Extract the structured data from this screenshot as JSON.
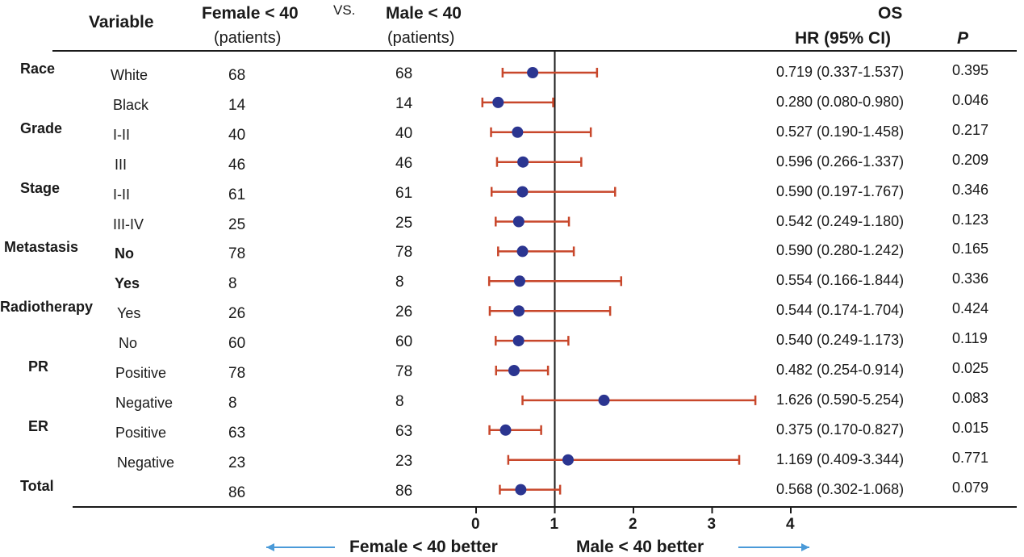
{
  "header": {
    "variable": "Variable",
    "female": "Female < 40",
    "vs": "VS.",
    "male": "Male < 40",
    "patients": "(patients)",
    "os": "OS",
    "hr_ci": "HR (95% CI)",
    "p": "P"
  },
  "groups": [
    {
      "label": "Race",
      "first_row": 0
    },
    {
      "label": "Grade",
      "first_row": 2
    },
    {
      "label": "Stage",
      "first_row": 4
    },
    {
      "label": "Metastasis",
      "first_row": 6
    },
    {
      "label": "Radiotherapy",
      "first_row": 8
    },
    {
      "label": "PR",
      "first_row": 10
    },
    {
      "label": "ER",
      "first_row": 12
    },
    {
      "label": "Total",
      "first_row": 14
    }
  ],
  "rows": [
    {
      "subgroup": "White",
      "female_n": "68",
      "male_n": "68",
      "hr_ci": "0.719 (0.337-1.537)",
      "p": "0.395"
    },
    {
      "subgroup": "Black",
      "female_n": "14",
      "male_n": "14",
      "hr_ci": "0.280 (0.080-0.980)",
      "p": "0.046"
    },
    {
      "subgroup": "I-II",
      "female_n": "40",
      "male_n": "40",
      "hr_ci": "0.527 (0.190-1.458)",
      "p": "0.217"
    },
    {
      "subgroup": "III",
      "female_n": "46",
      "male_n": "46",
      "hr_ci": "0.596 (0.266-1.337)",
      "p": "0.209"
    },
    {
      "subgroup": "I-II",
      "female_n": "61",
      "male_n": "61",
      "hr_ci": "0.590 (0.197-1.767)",
      "p": "0.346"
    },
    {
      "subgroup": "III-IV",
      "female_n": "25",
      "male_n": "25",
      "hr_ci": "0.542 (0.249-1.180)",
      "p": "0.123"
    },
    {
      "subgroup": "No",
      "female_n": "78",
      "male_n": "78",
      "hr_ci": "0.590 (0.280-1.242)",
      "p": "0.165"
    },
    {
      "subgroup": "Yes",
      "female_n": "8",
      "male_n": "8",
      "hr_ci": "0.554 (0.166-1.844)",
      "p": "0.336"
    },
    {
      "subgroup": "Yes",
      "female_n": "26",
      "male_n": "26",
      "hr_ci": "0.544 (0.174-1.704)",
      "p": "0.424"
    },
    {
      "subgroup": "No",
      "female_n": "60",
      "male_n": "60",
      "hr_ci": "0.540 (0.249-1.173)",
      "p": "0.119"
    },
    {
      "subgroup": "Positive",
      "female_n": "78",
      "male_n": "78",
      "hr_ci": "0.482 (0.254-0.914)",
      "p": "0.025"
    },
    {
      "subgroup": "Negative",
      "female_n": "8",
      "male_n": "8",
      "hr_ci": "1.626 (0.590-5.254)",
      "p": "0.083"
    },
    {
      "subgroup": "Positive",
      "female_n": "63",
      "male_n": "63",
      "hr_ci": "0.375 (0.170-0.827)",
      "p": "0.015"
    },
    {
      "subgroup": "Negative",
      "female_n": "23",
      "male_n": "23",
      "hr_ci": "1.169 (0.409-3.344)",
      "p": "0.771"
    },
    {
      "subgroup": "",
      "female_n": "86",
      "male_n": "86",
      "hr_ci": "0.568 (0.302-1.068)",
      "p": "0.079"
    }
  ],
  "footer": {
    "female_better": "Female < 40  better",
    "male_better": "Male < 40 better"
  },
  "colors": {
    "point": "#2b3590",
    "ci_line": "#c8472b",
    "arrow": "#4a9ad8",
    "axis": "#1a1a1a"
  },
  "chart_data": {
    "type": "forest",
    "reference_line": 1,
    "xlim": [
      0,
      4
    ],
    "xticks": [
      "0",
      "1",
      "2",
      "3",
      "4"
    ],
    "series": [
      {
        "values": [
          0.719,
          0.28,
          0.527,
          0.596,
          0.59,
          0.542,
          0.59,
          0.554,
          0.544,
          0.54,
          0.482,
          1.626,
          0.375,
          1.169,
          0.568
        ]
      }
    ],
    "ci_lower": [
      0.337,
      0.08,
      0.19,
      0.266,
      0.197,
      0.249,
      0.28,
      0.166,
      0.174,
      0.249,
      0.254,
      0.59,
      0.17,
      0.409,
      0.302
    ],
    "ci_upper": [
      1.537,
      0.98,
      1.458,
      1.337,
      1.767,
      1.18,
      1.242,
      1.844,
      1.704,
      1.173,
      0.914,
      5.254,
      0.827,
      3.344,
      1.068
    ],
    "axis_display_max": 4,
    "ci_upper_drawn": [
      1.537,
      0.98,
      1.458,
      1.337,
      1.767,
      1.18,
      1.242,
      1.844,
      1.704,
      1.173,
      0.914,
      3.55,
      0.827,
      3.344,
      1.068
    ]
  }
}
